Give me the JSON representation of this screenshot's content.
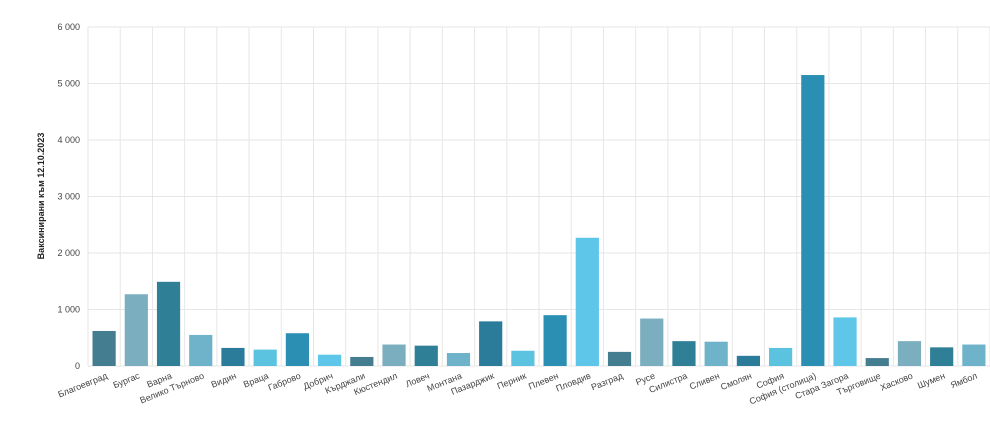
{
  "chart_data": {
    "type": "bar",
    "title": "",
    "xlabel": "",
    "ylabel": "Ваксинирани към 12.10.2023",
    "ylim": [
      0,
      6000
    ],
    "yticks": [
      0,
      1000,
      2000,
      3000,
      4000,
      5000,
      6000
    ],
    "ytick_labels": [
      "0",
      "1 000",
      "2 000",
      "3 000",
      "4 000",
      "5 000",
      "6 000"
    ],
    "grid": true,
    "categories": [
      "Благоевград",
      "Бургас",
      "Варна",
      "Велико Търново",
      "Видин",
      "Враца",
      "Габрово",
      "Добрич",
      "Кърджали",
      "Кюстендил",
      "Ловеч",
      "Монтана",
      "Пазарджик",
      "Перник",
      "Плевен",
      "Пловдив",
      "Разград",
      "Русе",
      "Силистра",
      "Сливен",
      "Смолян",
      "София",
      "София (столица)",
      "Стара Загора",
      "Търговище",
      "Хасково",
      "Шумен",
      "Ямбол"
    ],
    "values": [
      620,
      1270,
      1490,
      550,
      320,
      290,
      580,
      200,
      160,
      380,
      360,
      230,
      790,
      270,
      900,
      2270,
      250,
      840,
      440,
      430,
      180,
      320,
      5150,
      860,
      140,
      440,
      330,
      380
    ],
    "colors": [
      "#447d8f",
      "#7baebf",
      "#2f7f97",
      "#6fb3cb",
      "#2b7c9b",
      "#5bc2df",
      "#2a8fb2",
      "#5ec6e8",
      "#447d8f",
      "#7baebf",
      "#2f7f97",
      "#6fb3cb",
      "#2b7c9b",
      "#5bc2df",
      "#2a8fb2",
      "#5ec6e8",
      "#447d8f",
      "#7baebf",
      "#2f7f97",
      "#6fb3cb",
      "#2b7c9b",
      "#5bc2df",
      "#2a8fb2",
      "#5ec6e8",
      "#447d8f",
      "#7baebf",
      "#2f7f97",
      "#6fb3cb"
    ]
  }
}
